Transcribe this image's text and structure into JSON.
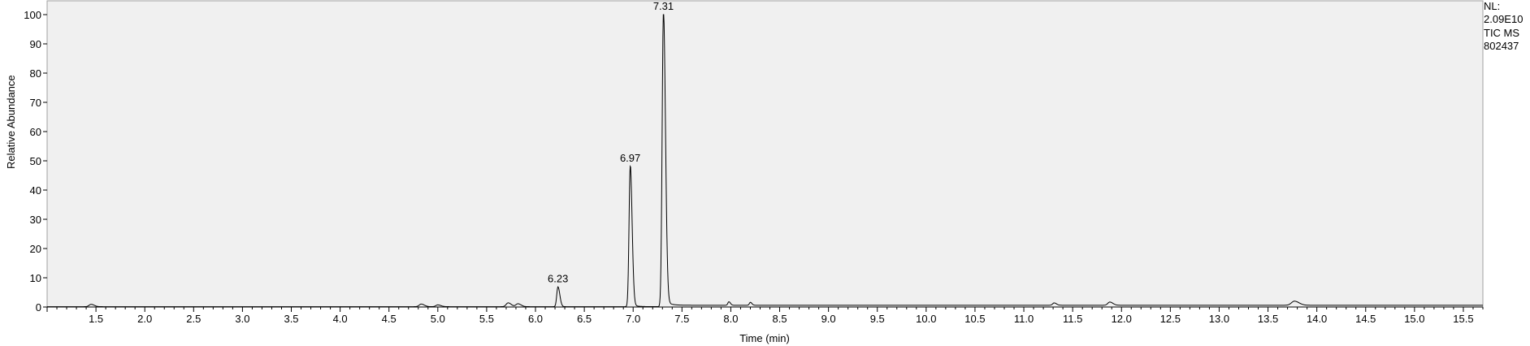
{
  "info": {
    "nl_label": "NL:",
    "nl_value": "2.09E10",
    "scan_filter": "TIC  MS",
    "file_id": "802437"
  },
  "chart_data": {
    "type": "line",
    "title": "",
    "xlabel": "Time (min)",
    "ylabel": "Relative Abundance",
    "xlim": [
      1.0,
      15.7
    ],
    "ylim": [
      0,
      100
    ],
    "x_ticks": [
      "1.5",
      "2.0",
      "2.5",
      "3.0",
      "3.5",
      "4.0",
      "4.5",
      "5.0",
      "5.5",
      "6.0",
      "6.5",
      "7.0",
      "7.5",
      "8.0",
      "8.5",
      "9.0",
      "9.5",
      "10.0",
      "10.5",
      "11.0",
      "11.5",
      "12.0",
      "12.5",
      "13.0",
      "13.5",
      "14.0",
      "14.5",
      "15.0",
      "15.5"
    ],
    "y_ticks": [
      "0",
      "10",
      "20",
      "30",
      "40",
      "50",
      "60",
      "70",
      "80",
      "90",
      "100"
    ],
    "grid": false,
    "background": "#f0f0f0",
    "line_color": "#000000",
    "baseline": 0.6,
    "peaks": [
      {
        "rt": 1.45,
        "height": 0.8,
        "width": 0.02
      },
      {
        "rt": 4.83,
        "height": 0.9,
        "width": 0.02
      },
      {
        "rt": 5.0,
        "height": 0.6,
        "width": 0.02
      },
      {
        "rt": 5.72,
        "height": 1.3,
        "width": 0.02
      },
      {
        "rt": 5.82,
        "height": 1.0,
        "width": 0.02
      },
      {
        "rt": 6.23,
        "height": 6.8,
        "width": 0.012
      },
      {
        "rt": 6.97,
        "height": 48,
        "width": 0.012
      },
      {
        "rt": 7.31,
        "height": 100,
        "width": 0.013
      },
      {
        "rt": 7.98,
        "height": 1.2,
        "width": 0.01
      },
      {
        "rt": 8.2,
        "height": 1.0,
        "width": 0.01
      },
      {
        "rt": 11.31,
        "height": 0.8,
        "width": 0.015
      },
      {
        "rt": 11.88,
        "height": 1.1,
        "width": 0.02
      },
      {
        "rt": 13.77,
        "height": 1.4,
        "width": 0.03
      }
    ],
    "peak_labels": [
      {
        "rt": 6.23,
        "label": "6.23"
      },
      {
        "rt": 6.97,
        "label": "6.97"
      },
      {
        "rt": 7.31,
        "label": "7.31"
      }
    ]
  }
}
